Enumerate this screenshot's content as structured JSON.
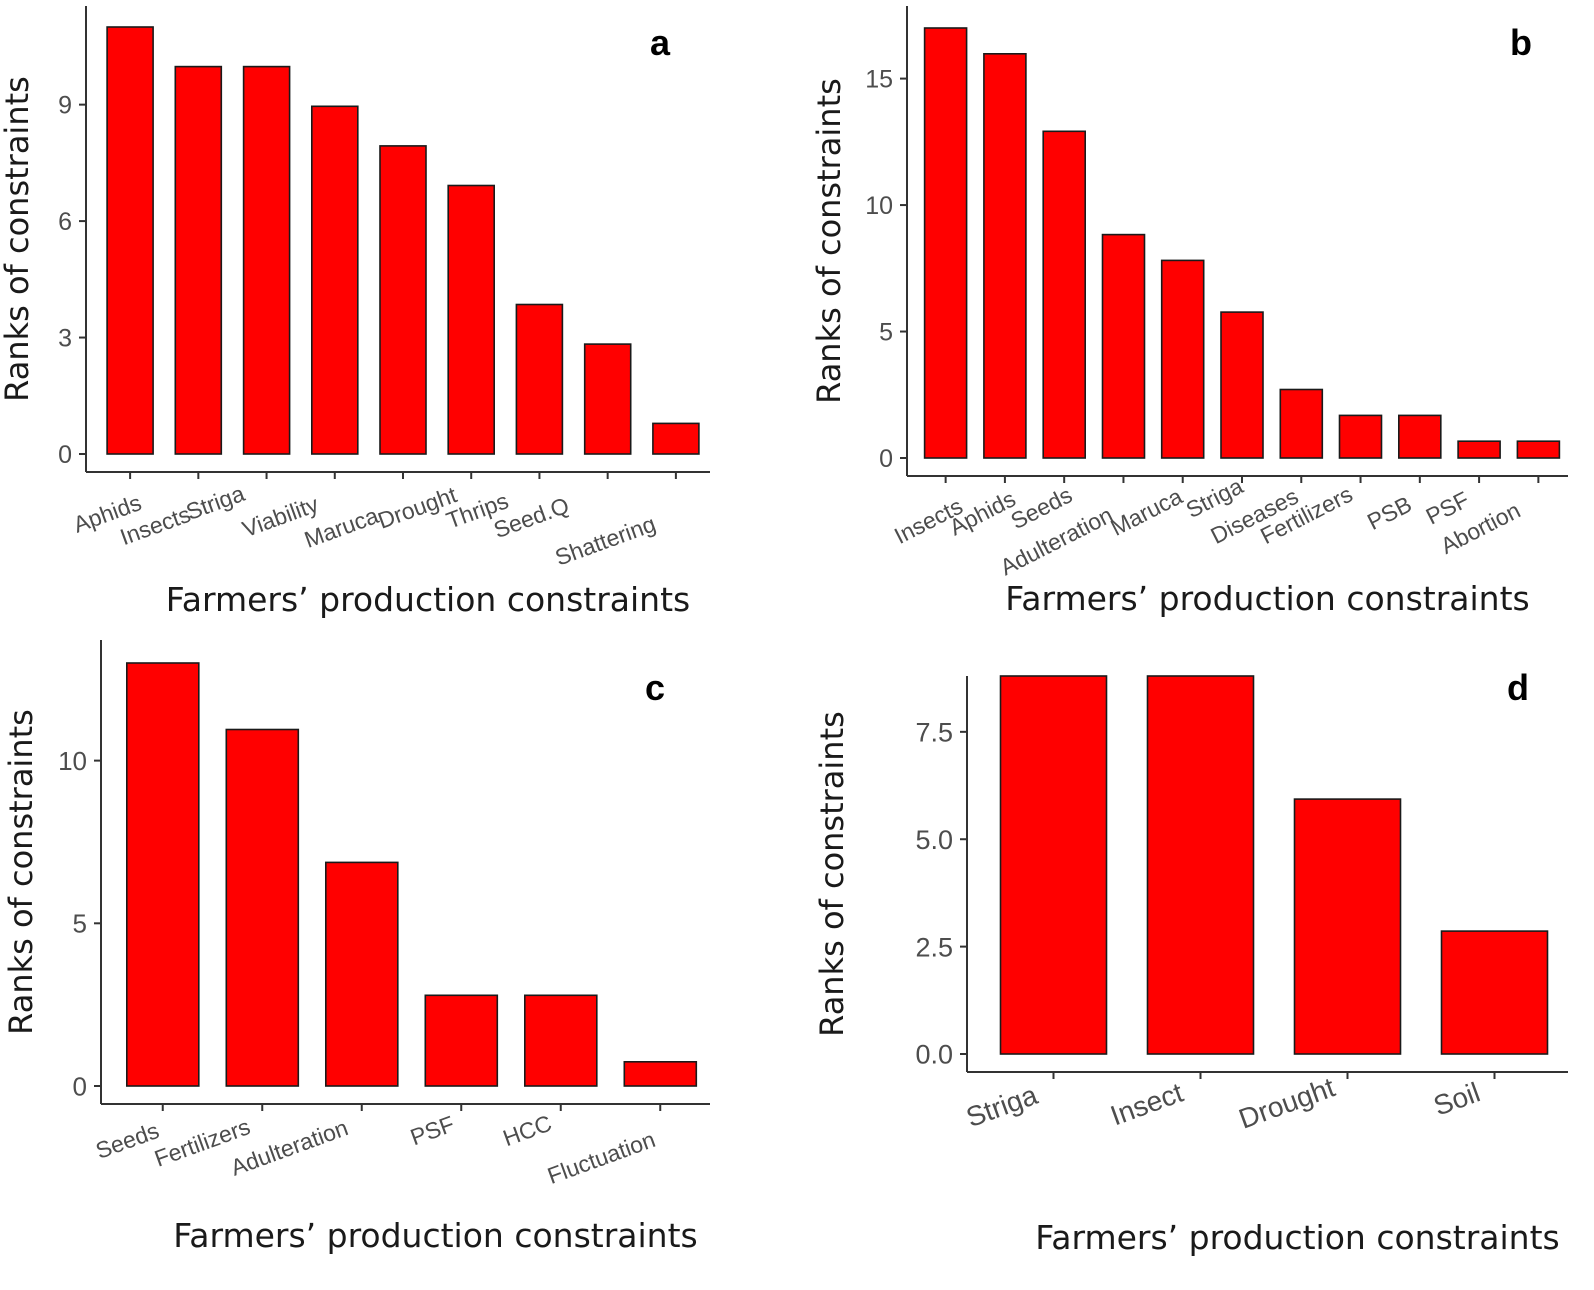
{
  "colors": {
    "bar_fill": "#ff0000",
    "bar_stroke": "#1a1a1a",
    "axis": "#333333",
    "tick_text": "#4d4d4d"
  },
  "chart_data": [
    {
      "type": "bar",
      "panel_label": "a",
      "categories": [
        "Aphids",
        "Insects",
        "Striga",
        "Viability",
        "Maruca",
        "Drought",
        "Thrips",
        "Seed.Q",
        "Shattering"
      ],
      "values": [
        11,
        10,
        10,
        9,
        8,
        7,
        4,
        3,
        1
      ],
      "xlabel": "Farmers’ production constraints",
      "ylabel": "Ranks of constraints",
      "yticks": [
        "0",
        "3",
        "6",
        "9"
      ],
      "ylim": [
        0,
        11
      ]
    },
    {
      "type": "bar",
      "panel_label": "b",
      "categories": [
        "Insects",
        "Aphids",
        "Seeds",
        "Adulteration",
        "Maruca",
        "Striga",
        "Diseases",
        "Fertilizers",
        "PSB",
        "PSF",
        "Abortion"
      ],
      "values": [
        17,
        16,
        13,
        9,
        8,
        6,
        3,
        2,
        2,
        1,
        1
      ],
      "xlabel": "Farmers’ production constraints",
      "ylabel": "Ranks of constraints",
      "yticks": [
        "0",
        "5",
        "10",
        "15"
      ],
      "ylim": [
        0,
        17
      ]
    },
    {
      "type": "bar",
      "panel_label": "c",
      "categories": [
        "Seeds",
        "Fertilizers",
        "Adulteration",
        "PSF",
        "HCC",
        "Fluctuation"
      ],
      "values": [
        13,
        11,
        7,
        3,
        3,
        1
      ],
      "xlabel": "Farmers’ production constraints",
      "ylabel": "Ranks of constraints",
      "yticks": [
        "0",
        "5",
        "10"
      ],
      "ylim": [
        0,
        13
      ]
    },
    {
      "type": "bar",
      "panel_label": "d",
      "categories": [
        "Striga",
        "Insect",
        "Drought",
        "Soil"
      ],
      "values": [
        9,
        9,
        6,
        3
      ],
      "xlabel": "Farmers’ production constraints",
      "ylabel": "Ranks of constraints",
      "yticks": [
        "0.0",
        "2.5",
        "5.0",
        "7.5"
      ],
      "ylim": [
        0,
        8.8
      ]
    }
  ]
}
